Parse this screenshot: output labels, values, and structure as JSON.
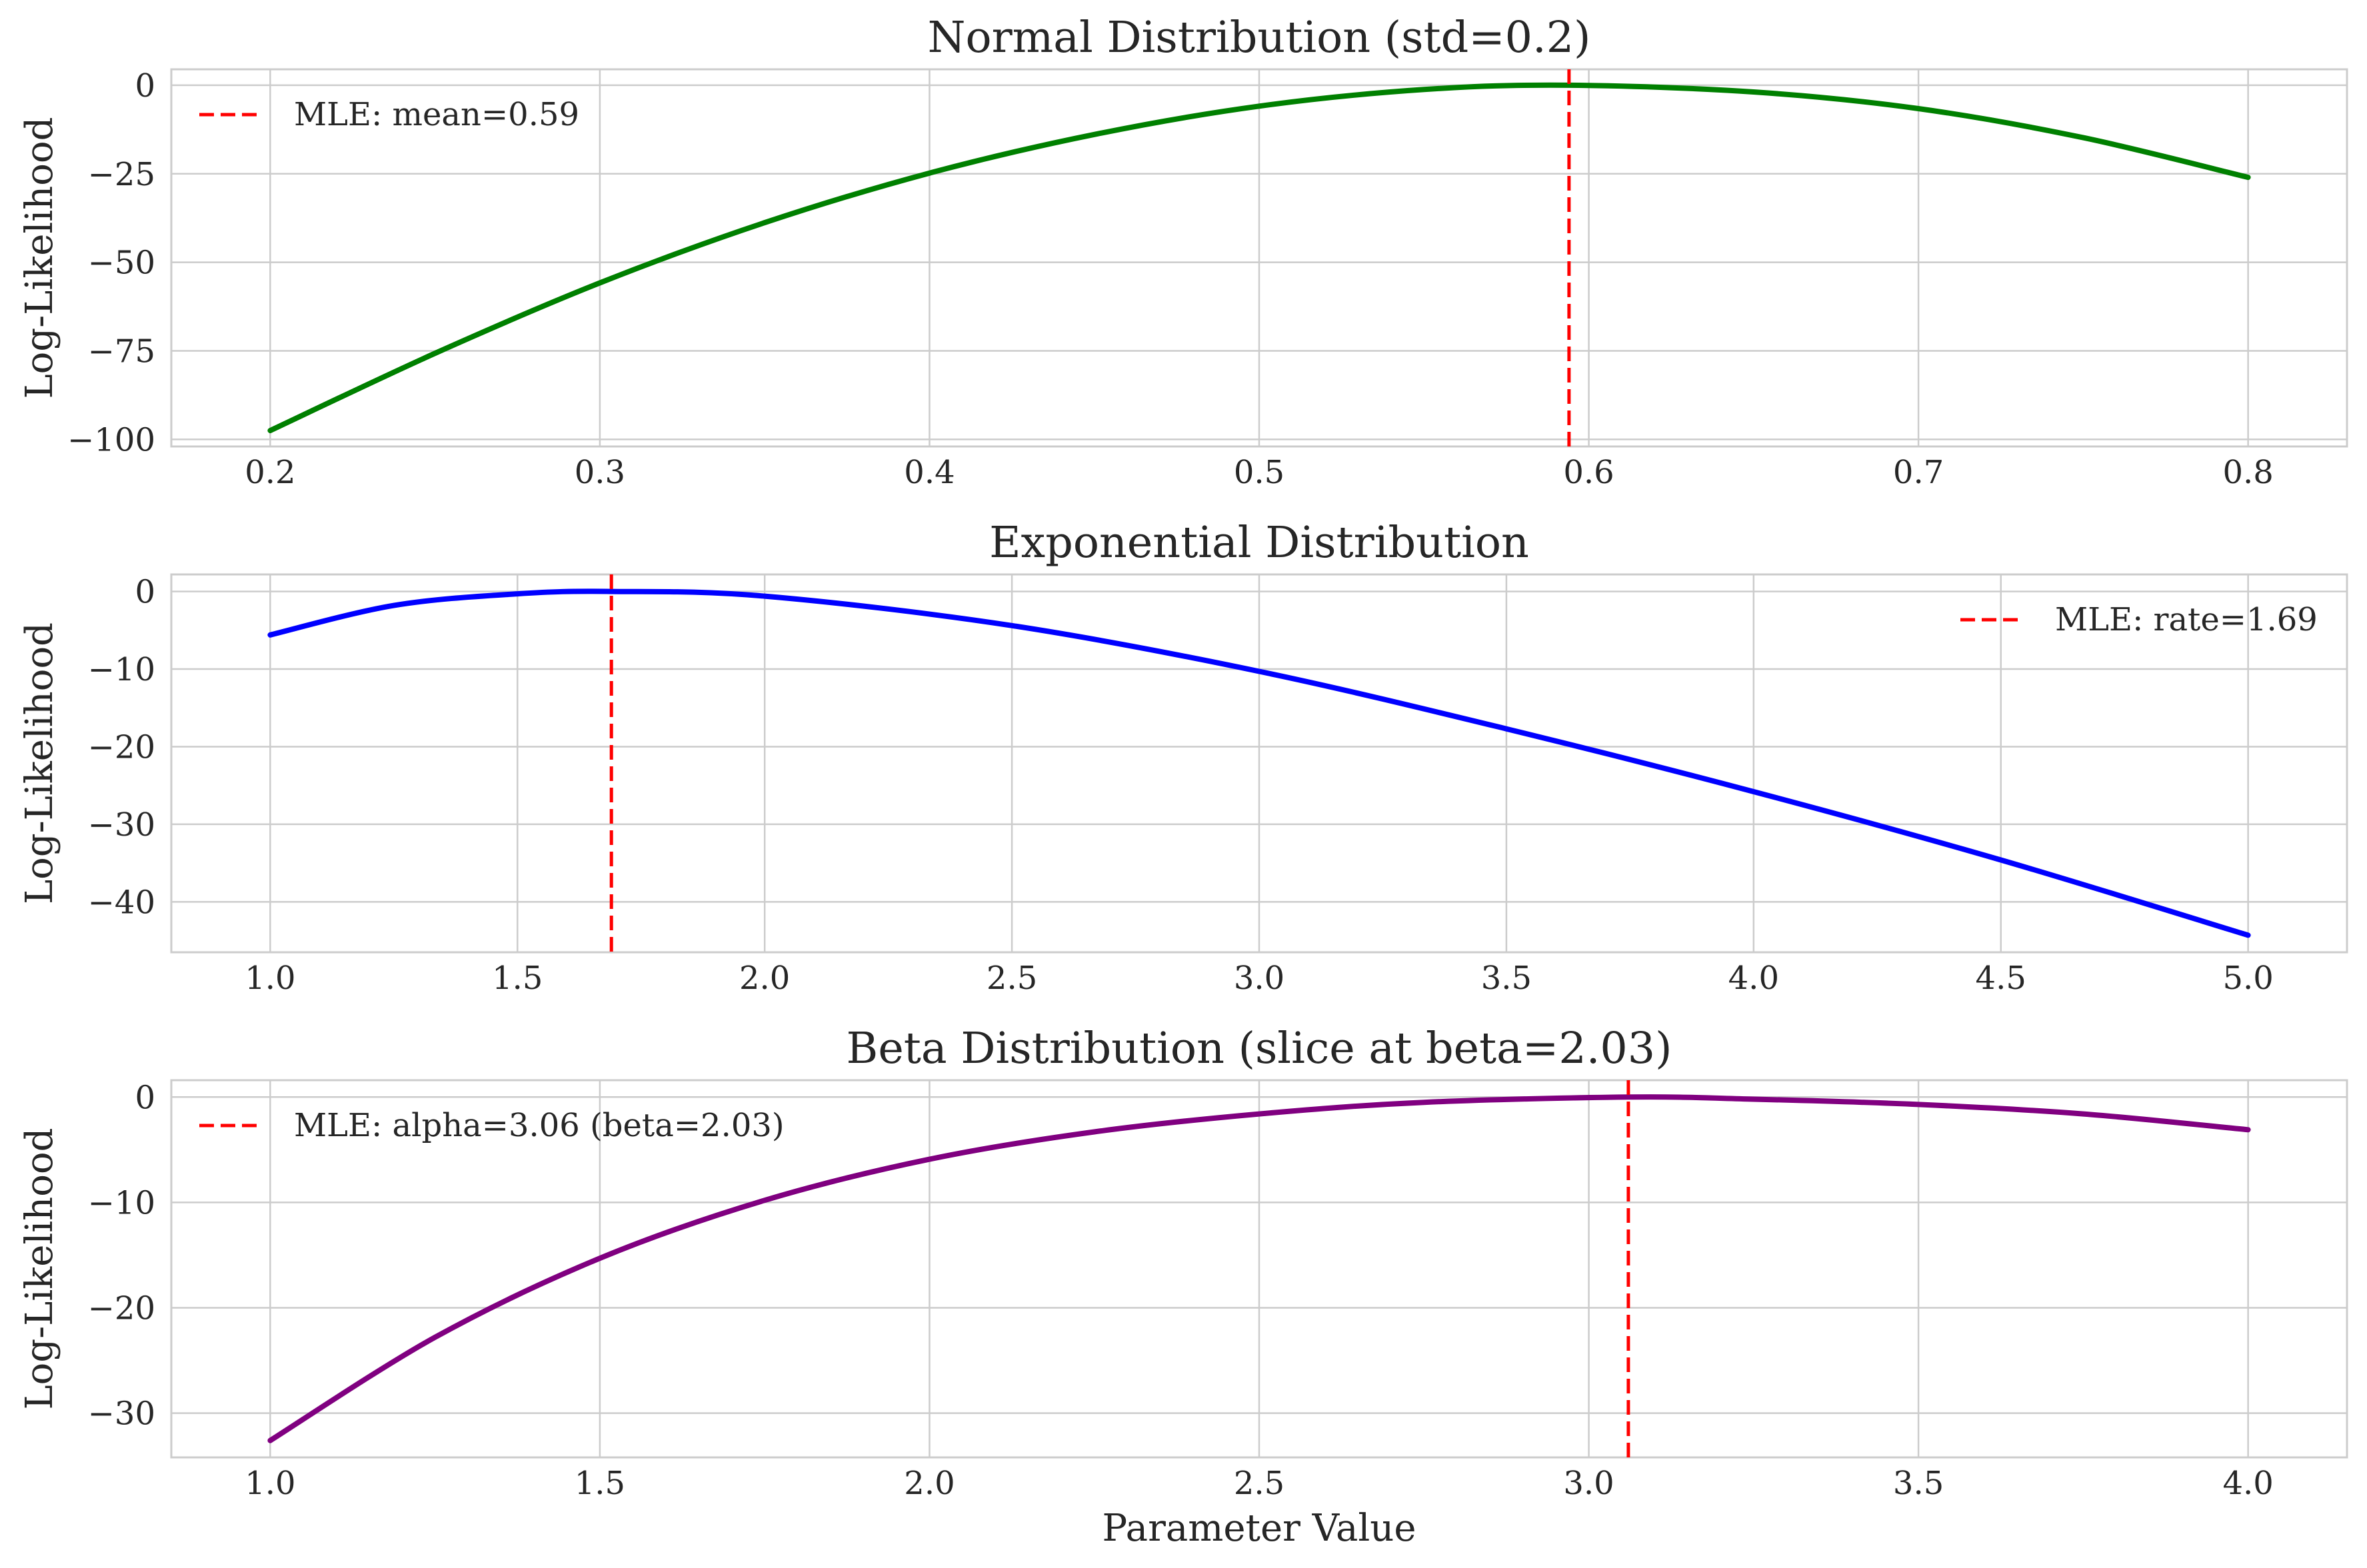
{
  "chart_data": [
    {
      "type": "line",
      "title": "Normal Distribution (std=0.2)",
      "ylabel": "Log-Likelihood",
      "xlabel": "",
      "xlim": [
        0.17,
        0.83
      ],
      "ylim": [
        -102,
        4.5
      ],
      "xticks": [
        0.2,
        0.3,
        0.4,
        0.5,
        0.6,
        0.7,
        0.8
      ],
      "xtick_labels": [
        "0.2",
        "0.3",
        "0.4",
        "0.5",
        "0.6",
        "0.7",
        "0.8"
      ],
      "yticks": [
        0,
        -25,
        -50,
        -75,
        -100
      ],
      "ytick_labels": [
        "0",
        "−25",
        "−50",
        "−75",
        "−100"
      ],
      "grid": true,
      "series": [
        {
          "color": "#008000",
          "x": [
            0.2,
            0.25,
            0.3,
            0.35,
            0.4,
            0.45,
            0.5,
            0.55,
            0.594,
            0.65,
            0.7,
            0.75,
            0.8
          ],
          "y": [
            -97.5,
            -75.7,
            -55.8,
            -38.8,
            -24.8,
            -13.9,
            -5.9,
            -1.2,
            0,
            -1.9,
            -6.6,
            -14.8,
            -26.0
          ]
        }
      ],
      "vline": {
        "x": 0.594,
        "color": "#ff0000",
        "style": "dashed",
        "label": "MLE: mean=0.59"
      },
      "legend_position": "upper left"
    },
    {
      "type": "line",
      "title": "Exponential Distribution",
      "ylabel": "Log-Likelihood",
      "xlabel": "",
      "xlim": [
        0.8,
        5.2
      ],
      "ylim": [
        -46.5,
        2.2
      ],
      "xticks": [
        1.0,
        1.5,
        2.0,
        2.5,
        3.0,
        3.5,
        4.0,
        4.5,
        5.0
      ],
      "xtick_labels": [
        "1.0",
        "1.5",
        "2.0",
        "2.5",
        "3.0",
        "3.5",
        "4.0",
        "4.5",
        "5.0"
      ],
      "yticks": [
        0,
        -10,
        -20,
        -30,
        -40
      ],
      "ytick_labels": [
        "0",
        "−10",
        "−20",
        "−30",
        "−40"
      ],
      "grid": true,
      "series": [
        {
          "color": "#0000ff",
          "x": [
            1.0,
            1.25,
            1.5,
            1.69,
            2.0,
            2.5,
            3.0,
            3.5,
            4.0,
            4.5,
            5.0
          ],
          "y": [
            -5.6,
            -1.8,
            -0.3,
            0,
            -0.6,
            -4.4,
            -10.3,
            -17.7,
            -25.8,
            -34.6,
            -44.3
          ]
        }
      ],
      "vline": {
        "x": 1.69,
        "color": "#ff0000",
        "style": "dashed",
        "label": "MLE: rate=1.69"
      },
      "legend_position": "upper right"
    },
    {
      "type": "line",
      "title": "Beta Distribution (slice at beta=2.03)",
      "ylabel": "Log-Likelihood",
      "xlabel": "Parameter Value",
      "xlim": [
        0.85,
        4.15
      ],
      "ylim": [
        -34.2,
        1.6
      ],
      "xticks": [
        1.0,
        1.5,
        2.0,
        2.5,
        3.0,
        3.5,
        4.0
      ],
      "xtick_labels": [
        "1.0",
        "1.5",
        "2.0",
        "2.5",
        "3.0",
        "3.5",
        "4.0"
      ],
      "yticks": [
        0,
        -10,
        -20,
        -30
      ],
      "ytick_labels": [
        "0",
        "−10",
        "−20",
        "−30"
      ],
      "grid": true,
      "series": [
        {
          "color": "#800080",
          "x": [
            1.0,
            1.25,
            1.5,
            1.75,
            2.0,
            2.25,
            2.5,
            2.75,
            3.06,
            3.25,
            3.5,
            3.75,
            4.0
          ],
          "y": [
            -32.6,
            -22.8,
            -15.3,
            -9.8,
            -5.9,
            -3.3,
            -1.6,
            -0.5,
            0,
            -0.2,
            -0.7,
            -1.6,
            -3.1
          ]
        }
      ],
      "vline": {
        "x": 3.06,
        "color": "#ff0000",
        "style": "dashed",
        "label": "MLE: alpha=3.06 (beta=2.03)"
      },
      "legend_position": "upper left"
    }
  ]
}
